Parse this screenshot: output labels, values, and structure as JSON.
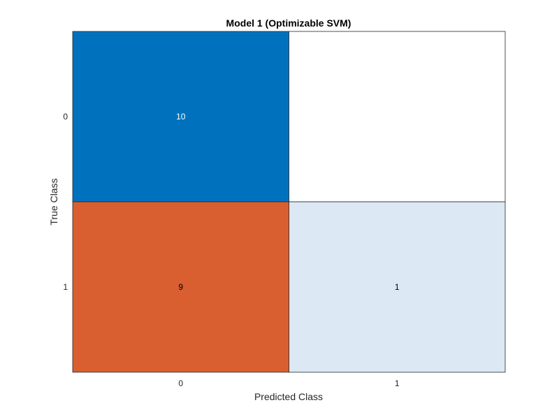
{
  "chart_data": {
    "type": "heatmap",
    "title": "Model 1 (Optimizable SVM)",
    "xlabel": "Predicted Class",
    "ylabel": "True Class",
    "x_categories": [
      "0",
      "1"
    ],
    "y_categories": [
      "0",
      "1"
    ],
    "values": [
      [
        10,
        null
      ],
      [
        9,
        1
      ]
    ],
    "cell_colors": [
      [
        "#0072bd",
        "#ffffff"
      ],
      [
        "#d95f30",
        "#dce9f4"
      ]
    ],
    "label_colors": [
      [
        "#ffffff",
        "#000000"
      ],
      [
        "#000000",
        "#000000"
      ]
    ],
    "grid": true,
    "legend": "none"
  }
}
